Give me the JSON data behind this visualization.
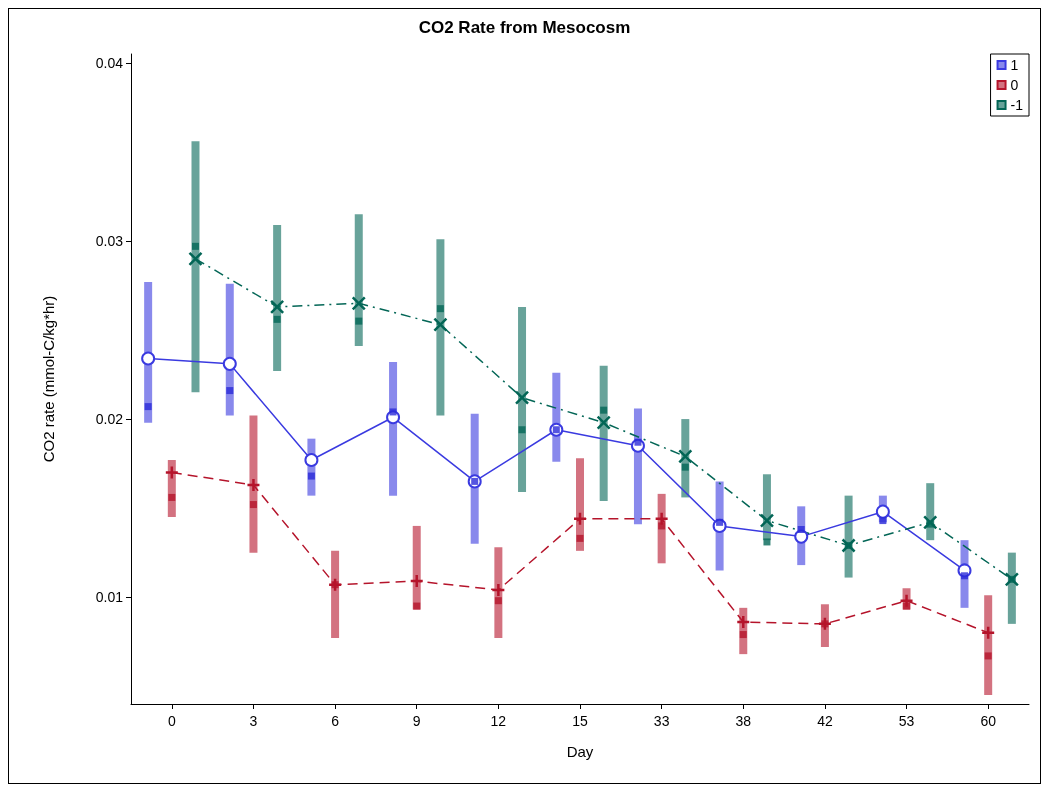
{
  "chart_data": {
    "type": "line",
    "title": "CO2 Rate from Mesocosm",
    "xlabel": "Day",
    "ylabel": "CO2 rate (mmol-C/kg*hr)",
    "categories": [
      "0",
      "3",
      "6",
      "9",
      "12",
      "15",
      "33",
      "38",
      "42",
      "53",
      "60"
    ],
    "ylim": [
      0.004,
      0.0405
    ],
    "yticks": [
      0.01,
      0.02,
      0.03,
      0.04
    ],
    "grid": false,
    "legend": "top right",
    "series": [
      {
        "name": "1",
        "color": "#3a3ae0",
        "marker": "circle",
        "line_style": "solid",
        "values": [
          0.0234,
          0.0231,
          0.0177,
          0.0201,
          0.0165,
          0.0194,
          0.0185,
          0.014,
          0.0134,
          0.0148,
          0.0115
        ],
        "errors": [
          [
            0.0198,
            0.0277
          ],
          [
            0.0202,
            0.0276
          ],
          [
            0.0157,
            0.0189
          ],
          [
            0.0157,
            0.0232
          ],
          [
            0.013,
            0.0203
          ],
          [
            0.0176,
            0.0226
          ],
          [
            0.0141,
            0.0206
          ],
          [
            0.0115,
            0.0165
          ],
          [
            0.0118,
            0.0151
          ],
          [
            0.0142,
            0.0157
          ],
          [
            0.0094,
            0.0132
          ]
        ]
      },
      {
        "name": "0",
        "color": "#b5142b",
        "marker": "cross",
        "line_style": "dashed",
        "values": [
          0.017,
          0.0163,
          0.0107,
          0.0109,
          0.0104,
          0.0144,
          0.0144,
          0.0086,
          0.0085,
          0.0098,
          0.008
        ],
        "errors": [
          [
            0.0145,
            0.0177
          ],
          [
            0.0125,
            0.0202
          ],
          [
            0.0077,
            0.0126
          ],
          [
            0.0093,
            0.014
          ],
          [
            0.0077,
            0.0128
          ],
          [
            0.0126,
            0.0178
          ],
          [
            0.0119,
            0.0158
          ],
          [
            0.0068,
            0.0094
          ],
          [
            0.0072,
            0.0096
          ],
          [
            0.0093,
            0.0105
          ],
          [
            0.0045,
            0.0101
          ]
        ]
      },
      {
        "name": "-1",
        "color": "#036656",
        "marker": "x",
        "line_style": "dashdot",
        "values": [
          0.029,
          0.0263,
          0.0265,
          0.0253,
          0.0212,
          0.0198,
          0.0179,
          0.0143,
          0.0129,
          0.0142,
          0.011
        ],
        "errors": [
          [
            0.0215,
            0.0356
          ],
          [
            0.0227,
            0.0309
          ],
          [
            0.0241,
            0.0315
          ],
          [
            0.0202,
            0.0301
          ],
          [
            0.0159,
            0.0263
          ],
          [
            0.0154,
            0.023
          ],
          [
            0.0156,
            0.02
          ],
          [
            0.0132,
            0.0169
          ],
          [
            0.0111,
            0.0157
          ],
          [
            0.0132,
            0.0164
          ],
          [
            0.0085,
            0.0125
          ]
        ]
      },
      {
        "type": "scatter",
        "color": "#2a2ad8",
        "marker": "square",
        "x": [
          "0",
          "3",
          "6",
          "9",
          "12",
          "15",
          "33",
          "38",
          "42",
          "53",
          "60"
        ],
        "values": [
          0.0207,
          0.0216,
          0.0168,
          0.0204,
          0.0165,
          0.0194,
          0.0187,
          0.0142,
          0.0138,
          0.0143,
          0.0112
        ]
      },
      {
        "type": "scatter",
        "color": "#b5142b",
        "marker": "square",
        "x": [
          "0",
          "3",
          "6",
          "9",
          "12",
          "15",
          "33",
          "38",
          "42",
          "53",
          "60"
        ],
        "values": [
          0.0156,
          0.0152,
          0.0107,
          0.0095,
          0.0098,
          0.0133,
          0.014,
          0.0079,
          0.0085,
          0.0095,
          0.0067
        ]
      },
      {
        "type": "scatter",
        "color": "#036656",
        "marker": "square",
        "x": [
          "0",
          "3",
          "6",
          "9",
          "12",
          "15",
          "33",
          "38",
          "42",
          "53",
          "60"
        ],
        "values": [
          0.0297,
          0.0256,
          0.0255,
          0.0262,
          0.0194,
          0.0205,
          0.0173,
          0.0131,
          0.0129,
          0.0141,
          0.011
        ]
      }
    ]
  }
}
